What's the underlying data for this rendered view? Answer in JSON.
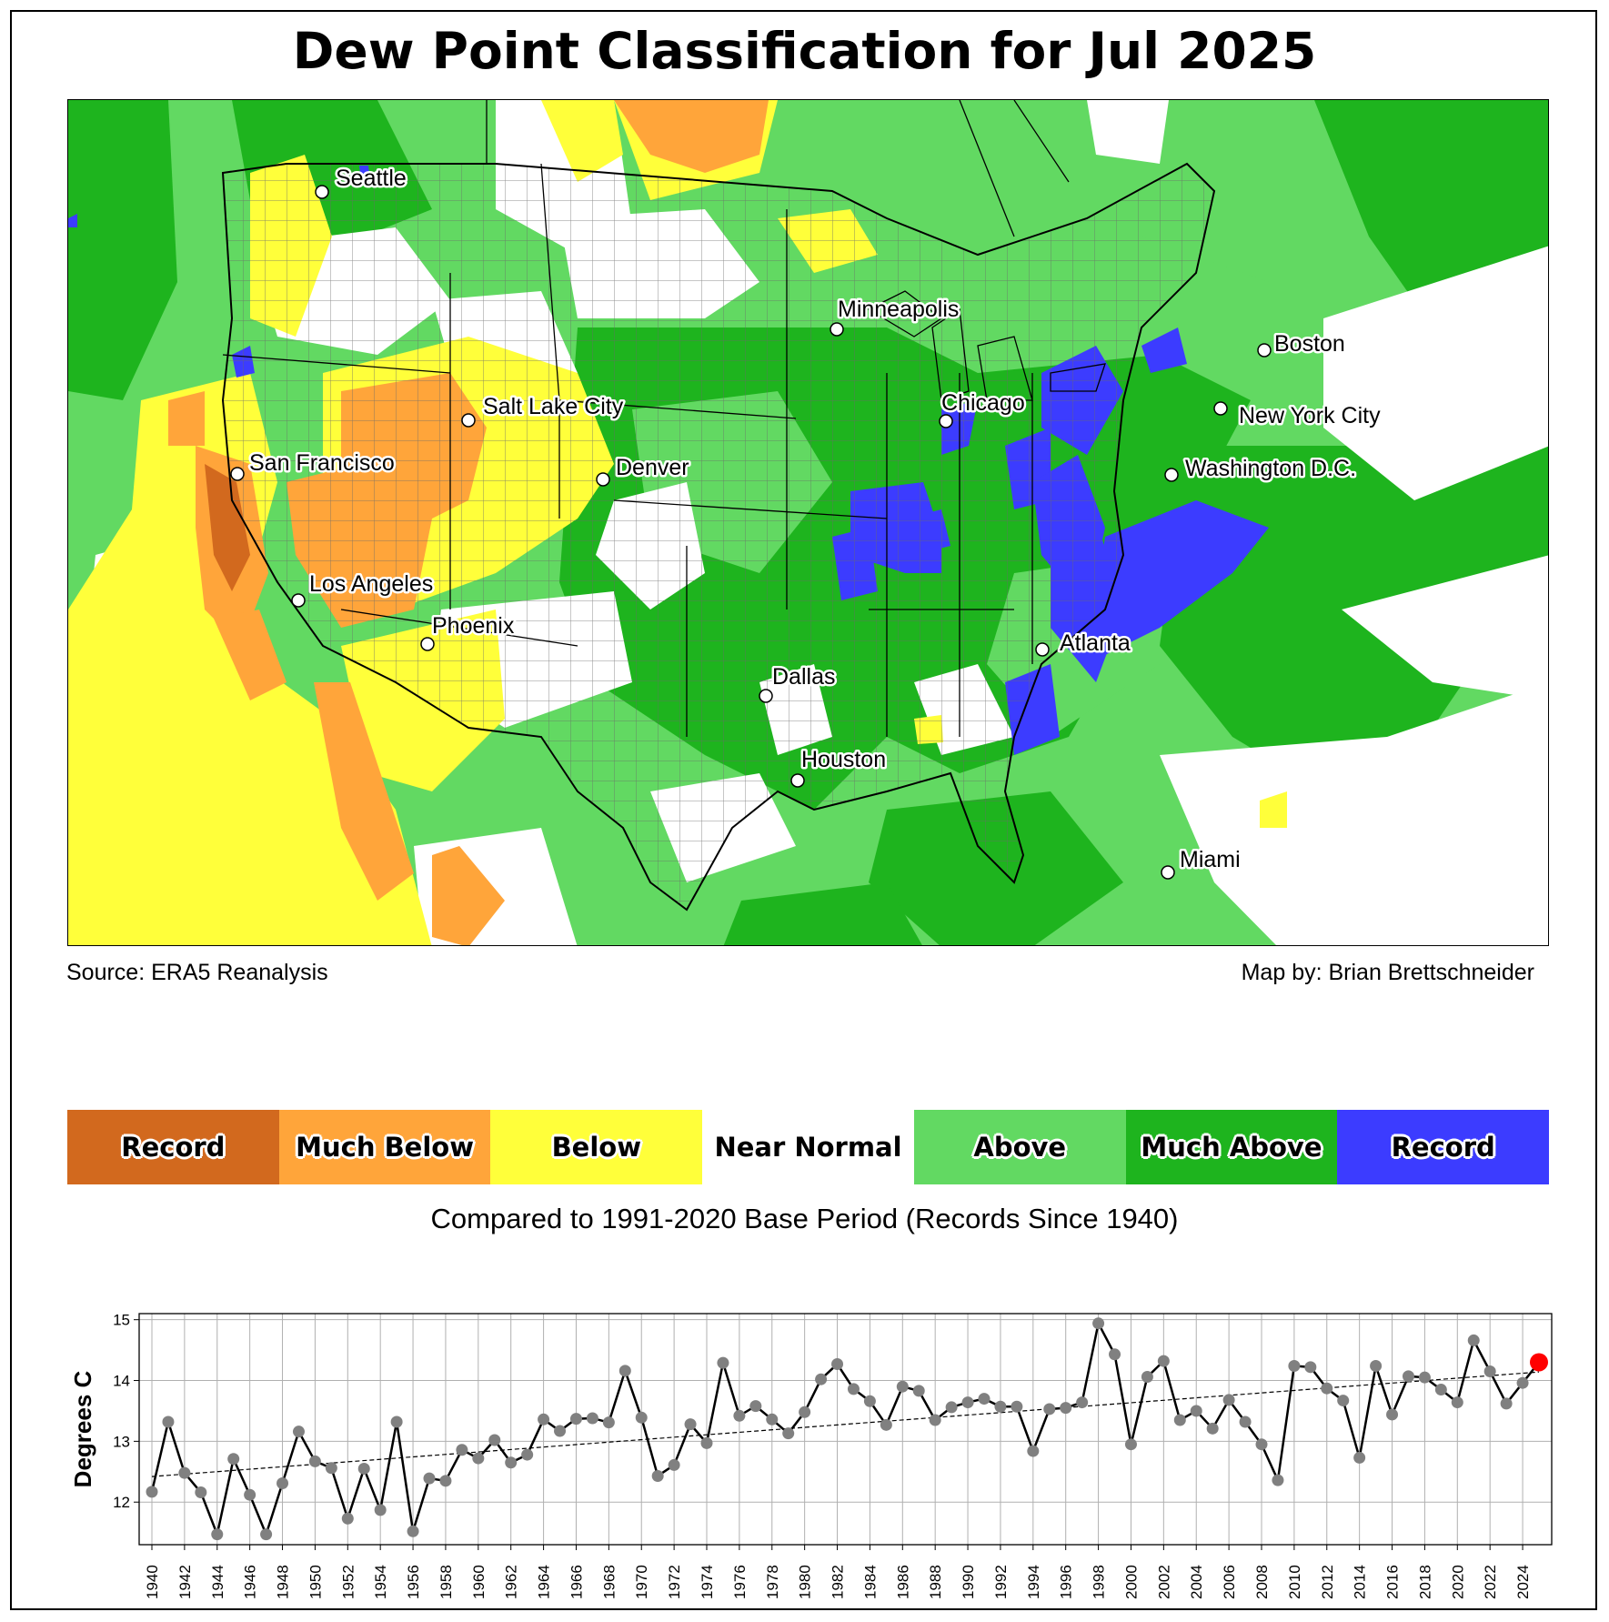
{
  "title": "Dew Point Classification for Jul 2025",
  "source_text": "Source: ERA5 Reanalysis",
  "credit_text": "Map by: Brian Brettschneider",
  "base_note": "Compared to 1991-2020 Base Period   (Records Since 1940)",
  "legend": [
    {
      "label": "Record",
      "color": "#d2691e"
    },
    {
      "label": "Much Below",
      "color": "#ffa53a"
    },
    {
      "label": "Below",
      "color": "#ffff3a"
    },
    {
      "label": "Near Normal",
      "color": "#ffffff"
    },
    {
      "label": "Above",
      "color": "#62d962"
    },
    {
      "label": "Much Above",
      "color": "#1eb41e"
    },
    {
      "label": "Record",
      "color": "#3c3cff"
    }
  ],
  "cities": [
    {
      "name": "Seattle"
    },
    {
      "name": "Minneapolis"
    },
    {
      "name": "Boston"
    },
    {
      "name": "Salt Lake City"
    },
    {
      "name": "Chicago"
    },
    {
      "name": "New York City"
    },
    {
      "name": "San Francisco"
    },
    {
      "name": "Denver"
    },
    {
      "name": "Washington D.C."
    },
    {
      "name": "Los Angeles"
    },
    {
      "name": "Phoenix"
    },
    {
      "name": "Atlanta"
    },
    {
      "name": "Dallas"
    },
    {
      "name": "Houston"
    },
    {
      "name": "Miami"
    }
  ],
  "chart_data": {
    "type": "line",
    "ylabel": "Degrees C",
    "ylim": [
      11.3,
      15.1
    ],
    "yticks": [
      12,
      13,
      14,
      15
    ],
    "grid": true,
    "x": [
      1940,
      1941,
      1942,
      1943,
      1944,
      1945,
      1946,
      1947,
      1948,
      1949,
      1950,
      1951,
      1952,
      1953,
      1954,
      1955,
      1956,
      1957,
      1958,
      1959,
      1960,
      1961,
      1962,
      1963,
      1964,
      1965,
      1966,
      1967,
      1968,
      1969,
      1970,
      1971,
      1972,
      1973,
      1974,
      1975,
      1976,
      1977,
      1978,
      1979,
      1980,
      1981,
      1982,
      1983,
      1984,
      1985,
      1986,
      1987,
      1988,
      1989,
      1990,
      1991,
      1992,
      1993,
      1994,
      1995,
      1996,
      1997,
      1998,
      1999,
      2000,
      2001,
      2002,
      2003,
      2004,
      2005,
      2006,
      2007,
      2008,
      2009,
      2010,
      2011,
      2012,
      2013,
      2014,
      2015,
      2016,
      2017,
      2018,
      2019,
      2020,
      2021,
      2022,
      2023,
      2024,
      2025
    ],
    "values": [
      12.17,
      13.32,
      12.48,
      12.16,
      11.47,
      12.71,
      12.12,
      11.47,
      12.31,
      13.16,
      12.67,
      12.56,
      11.73,
      12.55,
      11.87,
      13.32,
      11.52,
      12.39,
      12.35,
      12.86,
      12.72,
      13.02,
      12.65,
      12.78,
      13.36,
      13.17,
      13.37,
      13.38,
      13.31,
      14.16,
      13.39,
      12.43,
      12.61,
      13.28,
      12.97,
      14.29,
      13.42,
      13.58,
      13.36,
      13.13,
      13.48,
      14.02,
      14.27,
      13.86,
      13.66,
      13.27,
      13.9,
      13.83,
      13.35,
      13.56,
      13.64,
      13.7,
      13.57,
      13.57,
      12.84,
      13.53,
      13.55,
      13.64,
      14.94,
      14.43,
      12.95,
      14.06,
      14.32,
      13.35,
      13.5,
      13.21,
      13.68,
      13.32,
      12.95,
      12.36,
      14.24,
      14.22,
      13.87,
      13.67,
      12.73,
      14.24,
      13.44,
      14.07,
      14.05,
      13.85,
      13.64,
      14.66,
      14.15,
      13.62,
      13.96,
      14.3
    ],
    "xticks_every": 2,
    "trend": {
      "start": 12.42,
      "end": 14.14
    },
    "highlight": {
      "year": 2025,
      "color": "#ff0000"
    }
  }
}
